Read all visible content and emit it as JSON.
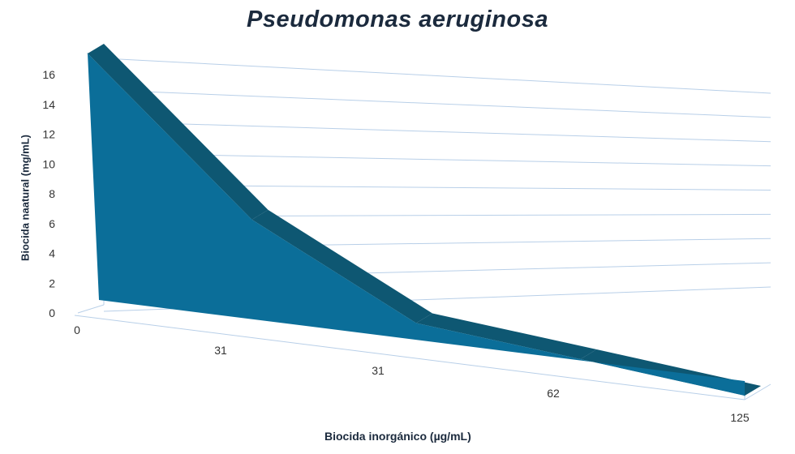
{
  "chart_data": {
    "type": "area",
    "title": "Pseudomonas aeruginosa",
    "xlabel": "Biocida inorgánico (µg/mL)",
    "ylabel": "Biocida naatural (mg/mL)",
    "categories": [
      "0",
      "31",
      "31",
      "62",
      "125"
    ],
    "series": [
      {
        "values": [
          16,
          7.5,
          2.2,
          1.2,
          0
        ]
      }
    ],
    "y_ticks": [
      "0",
      "2",
      "4",
      "6",
      "8",
      "10",
      "12",
      "14",
      "16"
    ],
    "ylim": [
      0,
      16
    ],
    "grid": true,
    "style": "3d",
    "colors": {
      "front": "#0b6e99",
      "top": "#0e5772",
      "grid": "#b8cfe8"
    }
  }
}
